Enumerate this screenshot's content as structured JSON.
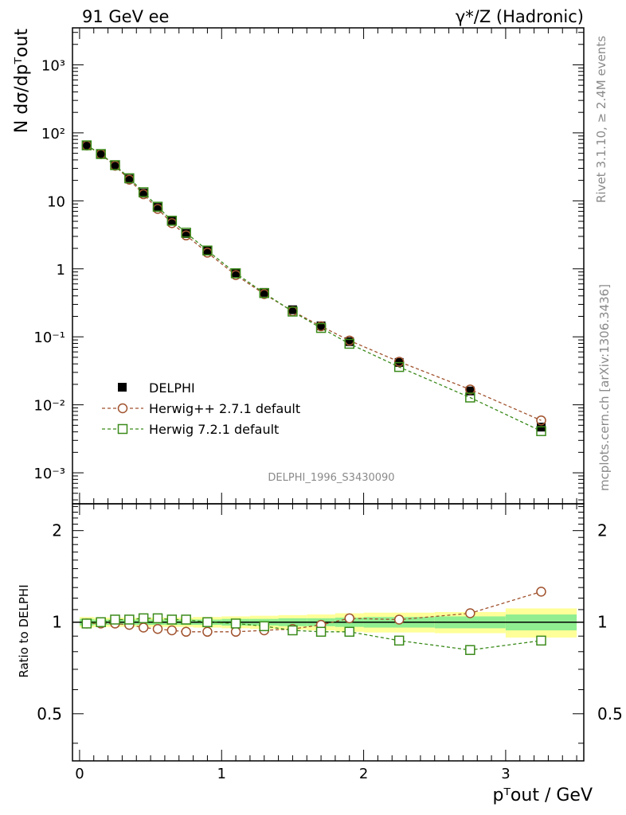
{
  "header": {
    "left": "91 GeV ee",
    "right": "γ*/Z (Hadronic)"
  },
  "side_texts": {
    "rivet": "Rivet 3.1.10, ≥ 2.4M events",
    "mcplots": "mcplots.cern.ch [arXiv:1306.3436]"
  },
  "analysis_id": "DELPHI_1996_S3430090",
  "axes": {
    "main_ylabel": "N dσ/dpᵀout",
    "ratio_ylabel": "Ratio to DELPHI",
    "xlabel": "pᵀout / GeV",
    "main_yticks": [
      "10⁻³",
      "10⁻²",
      "10⁻¹",
      "1",
      "10",
      "10²",
      "10³"
    ],
    "ratio_yticks": [
      "0.5",
      "1",
      "2"
    ],
    "xticks": [
      "0",
      "1",
      "2",
      "3"
    ]
  },
  "legend": {
    "data_label": "DELPHI",
    "herwigpp_label": "Herwig++ 2.7.1 default",
    "herwig7_label": "Herwig 7.2.1 default"
  },
  "colors": {
    "data": "#000000",
    "herwigpp": "#a0522d",
    "herwig7": "#3a8a1a",
    "band_inner": "#90ee90",
    "band_outer": "#ffff99"
  },
  "chart_data": {
    "type": "scatter",
    "x_bins": [
      [
        0.0,
        0.1
      ],
      [
        0.1,
        0.2
      ],
      [
        0.2,
        0.3
      ],
      [
        0.3,
        0.4
      ],
      [
        0.4,
        0.5
      ],
      [
        0.5,
        0.6
      ],
      [
        0.6,
        0.7
      ],
      [
        0.7,
        0.8
      ],
      [
        0.8,
        1.0
      ],
      [
        1.0,
        1.2
      ],
      [
        1.2,
        1.4
      ],
      [
        1.4,
        1.6
      ],
      [
        1.6,
        1.8
      ],
      [
        1.8,
        2.0
      ],
      [
        2.0,
        2.5
      ],
      [
        2.5,
        3.0
      ],
      [
        3.0,
        3.5
      ]
    ],
    "x": [
      0.05,
      0.15,
      0.25,
      0.35,
      0.45,
      0.55,
      0.65,
      0.75,
      0.9,
      1.1,
      1.3,
      1.5,
      1.7,
      1.9,
      2.25,
      2.75,
      3.25
    ],
    "xlim": [
      -0.05,
      3.55
    ],
    "main_ylim": [
      0.00035,
      3500
    ],
    "main_yscale": "log",
    "ratio_ylim": [
      0.35,
      2.45
    ],
    "ratio_yscale": "log",
    "series": [
      {
        "name": "DELPHI",
        "values": [
          66,
          49,
          33,
          21,
          13,
          8.0,
          5.0,
          3.3,
          1.85,
          0.87,
          0.45,
          0.25,
          0.145,
          0.085,
          0.042,
          0.016,
          0.0047
        ]
      },
      {
        "name": "Herwig++ 2.7.1 default",
        "values": [
          65,
          48.5,
          32.8,
          20.5,
          12.5,
          7.6,
          4.7,
          3.1,
          1.73,
          0.81,
          0.425,
          0.238,
          0.143,
          0.088,
          0.043,
          0.0168,
          0.0059
        ]
      },
      {
        "name": "Herwig 7.2.1 default",
        "values": [
          65.5,
          48.8,
          33.5,
          21.5,
          13.4,
          8.2,
          5.1,
          3.4,
          1.86,
          0.86,
          0.44,
          0.235,
          0.135,
          0.079,
          0.036,
          0.0128,
          0.0041
        ]
      }
    ],
    "ratio_series": [
      {
        "name": "Herwig++ 2.7.1 default",
        "values": [
          0.99,
          0.99,
          0.99,
          0.98,
          0.96,
          0.95,
          0.94,
          0.93,
          0.93,
          0.93,
          0.94,
          0.95,
          0.98,
          1.03,
          1.02,
          1.07,
          1.26
        ]
      },
      {
        "name": "Herwig 7.2.1 default",
        "values": [
          0.99,
          1.0,
          1.02,
          1.02,
          1.03,
          1.03,
          1.02,
          1.02,
          1.0,
          0.99,
          0.97,
          0.94,
          0.93,
          0.93,
          0.87,
          0.81,
          0.87
        ]
      }
    ],
    "band_inner": [
      0.025,
      0.02,
      0.02,
      0.02,
      0.02,
      0.02,
      0.02,
      0.02,
      0.02,
      0.025,
      0.025,
      0.03,
      0.03,
      0.035,
      0.04,
      0.045,
      0.06
    ],
    "band_outer": [
      0.04,
      0.035,
      0.035,
      0.035,
      0.035,
      0.035,
      0.035,
      0.035,
      0.04,
      0.045,
      0.05,
      0.055,
      0.06,
      0.07,
      0.075,
      0.08,
      0.11
    ]
  }
}
